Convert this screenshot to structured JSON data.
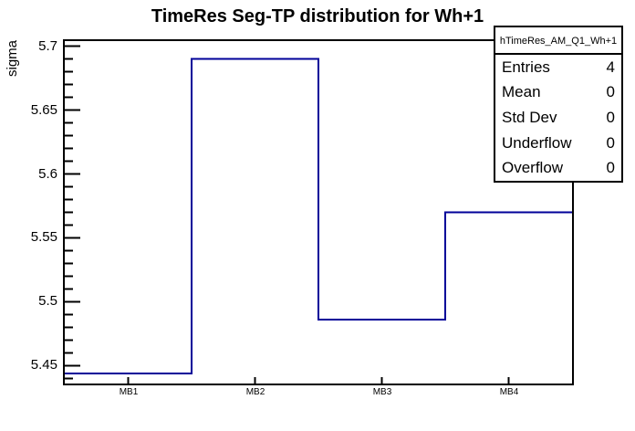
{
  "window": {
    "background": "#ffffff"
  },
  "chart_data": {
    "type": "step-histogram",
    "title": "TimeRes Seg-TP distribution for Wh+1",
    "xlabel": "",
    "ylabel": "sigma",
    "categories": [
      "MB1",
      "MB2",
      "MB3",
      "MB4"
    ],
    "values": [
      5.444,
      5.69,
      5.486,
      5.57
    ],
    "ylim": [
      5.436,
      5.704
    ],
    "yticks_major": [
      5.45,
      5.5,
      5.55,
      5.6,
      5.65,
      5.7
    ],
    "ytick_minor_step": 0.01,
    "grid": "off",
    "legend": "none",
    "line_color": "#000099",
    "axis_color": "#000000",
    "text_color": "#000000"
  },
  "stats_box": {
    "header": "hTimeRes_AM_Q1_Wh+1",
    "rows": [
      {
        "label": "Entries",
        "value": "4"
      },
      {
        "label": "Mean",
        "value": "0"
      },
      {
        "label": "Std Dev",
        "value": "0"
      },
      {
        "label": "Underflow",
        "value": "0"
      },
      {
        "label": "Overflow",
        "value": "0"
      }
    ]
  }
}
